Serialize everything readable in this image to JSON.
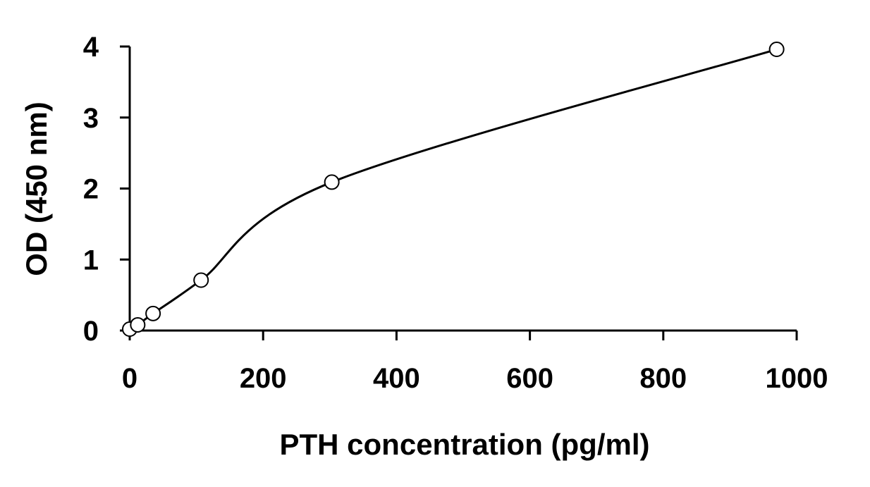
{
  "chart_data": {
    "type": "scatter",
    "title": "",
    "xlabel": "PTH concentration (pg/ml)",
    "ylabel": "OD (450 nm)",
    "xlim": [
      0,
      1000
    ],
    "ylim": [
      0,
      4
    ],
    "x_ticks": [
      "0",
      "200",
      "400",
      "600",
      "800",
      "1000"
    ],
    "y_ticks": [
      "0",
      "1",
      "2",
      "3",
      "4"
    ],
    "grid": false,
    "legend": "none",
    "series": [
      {
        "marker": "open-circle",
        "fit": "smooth-curve",
        "points": [
          {
            "x": 0,
            "y": 0.02
          },
          {
            "x": 12,
            "y": 0.08
          },
          {
            "x": 35,
            "y": 0.24
          },
          {
            "x": 107,
            "y": 0.71
          },
          {
            "x": 303,
            "y": 2.09
          },
          {
            "x": 970,
            "y": 3.96
          }
        ]
      }
    ],
    "colors": {
      "axis": "#000000",
      "curve": "#000000",
      "marker_stroke": "#000000",
      "marker_fill": "#ffffff",
      "background": "#ffffff"
    }
  }
}
